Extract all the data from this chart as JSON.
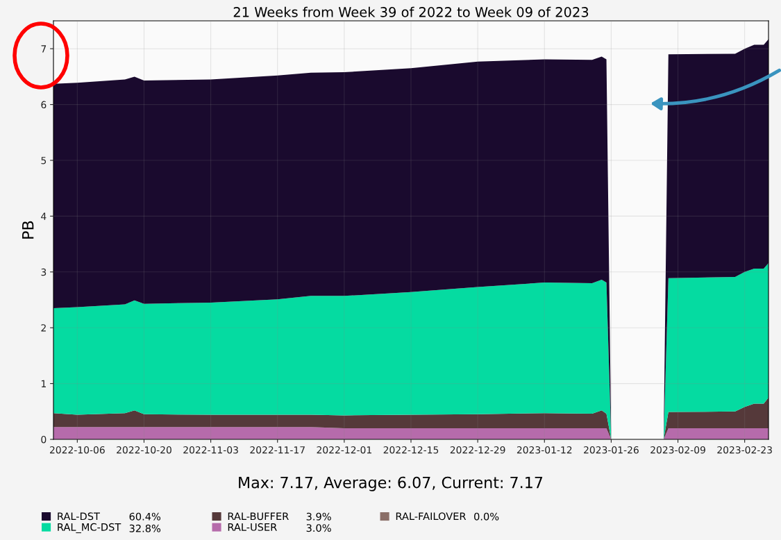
{
  "chart_data": {
    "type": "area",
    "stacked": true,
    "title": "21 Weeks from Week 39 of 2022 to Week 09 of 2023",
    "ylabel": "PB",
    "x": [
      "2022-10-01",
      "2022-10-06",
      "2022-10-16",
      "2022-10-18",
      "2022-10-20",
      "2022-11-03",
      "2022-11-17",
      "2022-11-24",
      "2022-12-01",
      "2022-12-15",
      "2022-12-29",
      "2023-01-12",
      "2023-01-22",
      "2023-01-24",
      "2023-01-25",
      "2023-01-26",
      "2023-02-01",
      "2023-02-06",
      "2023-02-07",
      "2023-02-21",
      "2023-02-23",
      "2023-02-25",
      "2023-02-27",
      "2023-02-28"
    ],
    "series": [
      {
        "name": "RAL-USER",
        "color": "#b66bab",
        "values": [
          0.22,
          0.22,
          0.22,
          0.22,
          0.22,
          0.22,
          0.22,
          0.22,
          0.2,
          0.2,
          0.2,
          0.2,
          0.2,
          0.2,
          0.2,
          0,
          null,
          0,
          0.2,
          0.2,
          0.2,
          0.2,
          0.2,
          0.2
        ]
      },
      {
        "name": "RAL-BUFFER",
        "color": "#55393a",
        "values": [
          0.25,
          0.22,
          0.25,
          0.3,
          0.23,
          0.22,
          0.22,
          0.22,
          0.23,
          0.24,
          0.25,
          0.27,
          0.26,
          0.32,
          0.26,
          0,
          null,
          0,
          0.29,
          0.3,
          0.38,
          0.44,
          0.44,
          0.55
        ]
      },
      {
        "name": "RAL_MC-DST",
        "color": "#05dba1",
        "values": [
          1.88,
          1.93,
          1.95,
          1.97,
          1.98,
          2.01,
          2.07,
          2.13,
          2.14,
          2.2,
          2.28,
          2.34,
          2.34,
          2.34,
          2.35,
          0,
          null,
          0,
          2.4,
          2.41,
          2.42,
          2.42,
          2.42,
          2.41
        ]
      },
      {
        "name": "RAL-DST",
        "color": "#1a0a2e",
        "values": [
          4.02,
          4.02,
          4.03,
          4.01,
          4.0,
          4.0,
          4.01,
          4.0,
          4.01,
          4.01,
          4.04,
          4.0,
          4.0,
          4.0,
          4.0,
          0,
          null,
          0,
          4.01,
          4.0,
          4.0,
          4.01,
          4.01,
          4.01
        ]
      },
      {
        "name": "RAL-FAILOVER",
        "color": "#8b6f68",
        "values": [
          null,
          null,
          null,
          null,
          null,
          null,
          null,
          null,
          null,
          null,
          null,
          null,
          null,
          null,
          null,
          null,
          null,
          null,
          null,
          null,
          null,
          null,
          null,
          null
        ]
      }
    ],
    "xlim": [
      "2022-10-01",
      "2023-02-28"
    ],
    "xticks": [
      "2022-10-06",
      "2022-10-20",
      "2022-11-03",
      "2022-11-17",
      "2022-12-01",
      "2022-12-15",
      "2022-12-29",
      "2023-01-12",
      "2023-01-26",
      "2023-02-09",
      "2023-02-23"
    ],
    "ylim": [
      0,
      7.5
    ],
    "yticks": [
      0,
      1,
      2,
      3,
      4,
      5,
      6,
      7
    ],
    "grid": true,
    "legend": "bottom",
    "annotations": [
      "Max: 7.17, Average: 6.07, Current: 7.17",
      "3.0%",
      "3.9%",
      "32.8%",
      "60.4%",
      "0.0%"
    ]
  }
}
